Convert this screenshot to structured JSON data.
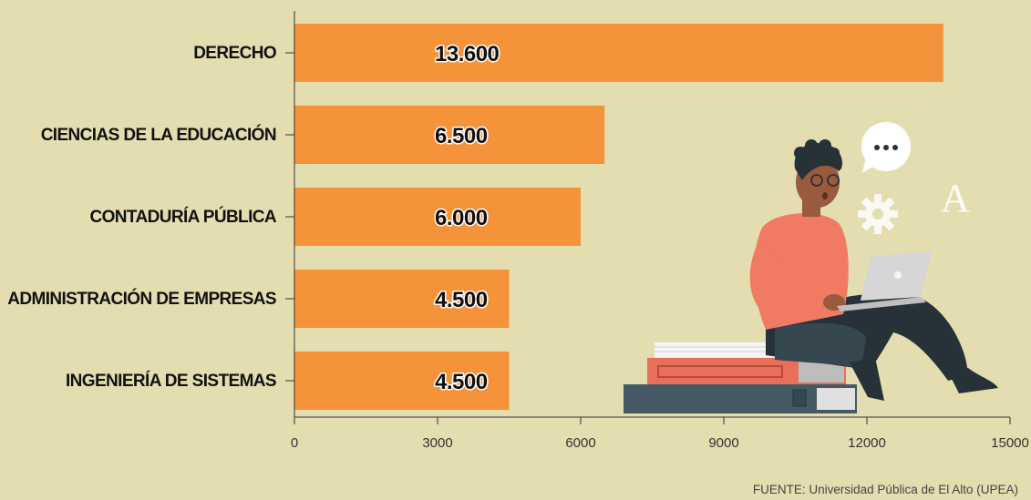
{
  "chart_data": {
    "type": "bar",
    "orientation": "horizontal",
    "categories": [
      "DERECHO",
      "CIENCIAS DE LA EDUCACIÓN",
      "CONTADURÍA PÚBLICA",
      "ADMINISTRACIÓN DE EMPRESAS",
      "INGENIERÍA DE SISTEMAS"
    ],
    "values": [
      13600,
      6500,
      6000,
      4500,
      4500
    ],
    "value_labels": [
      "13.600",
      "6.500",
      "6.000",
      "4.500",
      "4.500"
    ],
    "xlim": [
      0,
      15000
    ],
    "xticks": [
      0,
      3000,
      6000,
      9000,
      12000,
      15000
    ],
    "xtick_labels": [
      "0",
      "3000",
      "6000",
      "9000",
      "12000",
      "15000"
    ],
    "title": "",
    "xlabel": "",
    "ylabel": "",
    "grid": false,
    "colors": {
      "bar": "#f4933a",
      "background": "#e4ddb0"
    }
  },
  "source": "FUENTE: Universidad Pública de El Alto (UPEA)",
  "illustration": {
    "subject": "student-with-laptop-on-books",
    "icons": [
      "speech-bubble-icon",
      "gear-icon",
      "letter-a-icon"
    ],
    "colors": {
      "shirt": "#f07a62",
      "pants": "#263238",
      "skin": "#9a5a3c",
      "books": [
        "#455a64",
        "#e8705a",
        "#f3f3f3"
      ]
    }
  }
}
